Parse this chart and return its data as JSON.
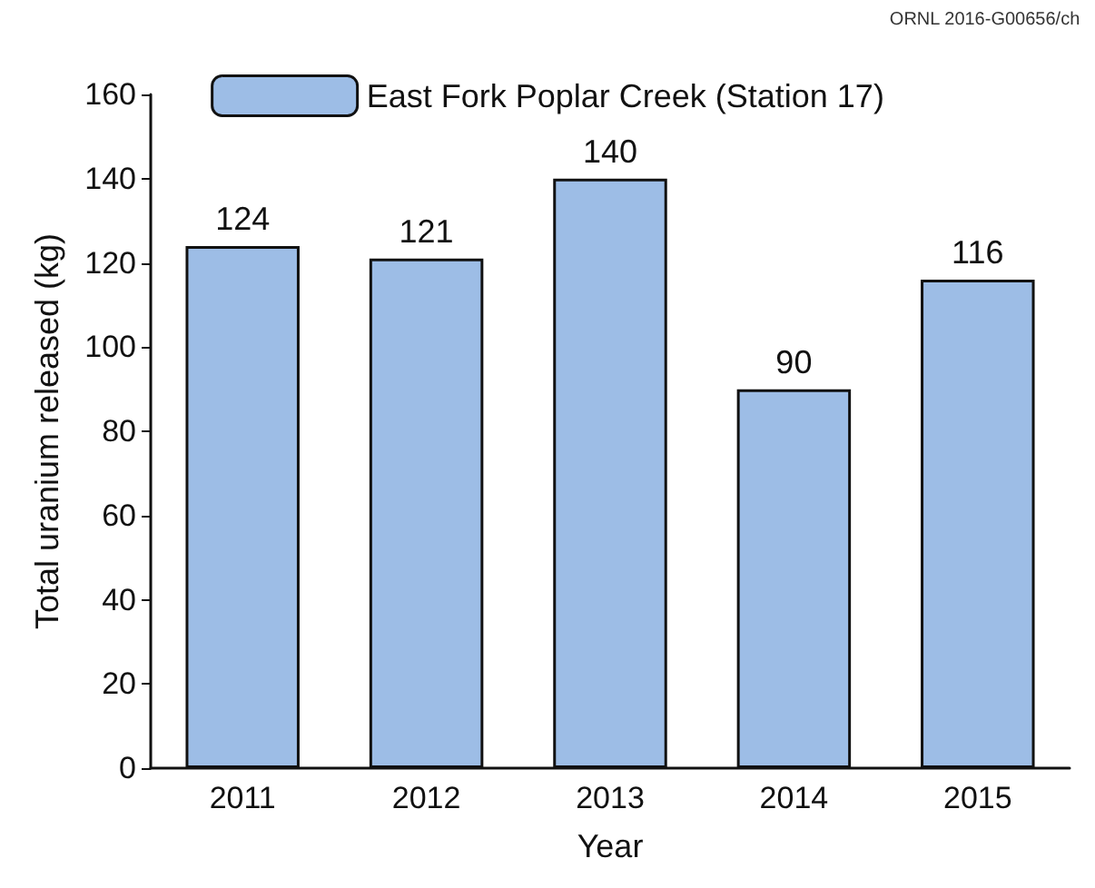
{
  "chart_data": {
    "type": "bar",
    "xlabel": "Year",
    "ylabel": "Total uranium released (kg)",
    "categories": [
      "2011",
      "2012",
      "2013",
      "2014",
      "2015"
    ],
    "series": [
      {
        "name": "East Fork Poplar Creek (Station 17)",
        "color": "#9dbde6",
        "values": [
          124,
          121,
          140,
          90,
          116
        ]
      }
    ],
    "ylim": [
      0,
      160
    ],
    "yticks": [
      0,
      20,
      40,
      60,
      80,
      100,
      120,
      140,
      160
    ],
    "data_labels": true,
    "legend": "top",
    "grid": false,
    "annotations": [
      "ORNL 2016-G00656/ch"
    ]
  }
}
